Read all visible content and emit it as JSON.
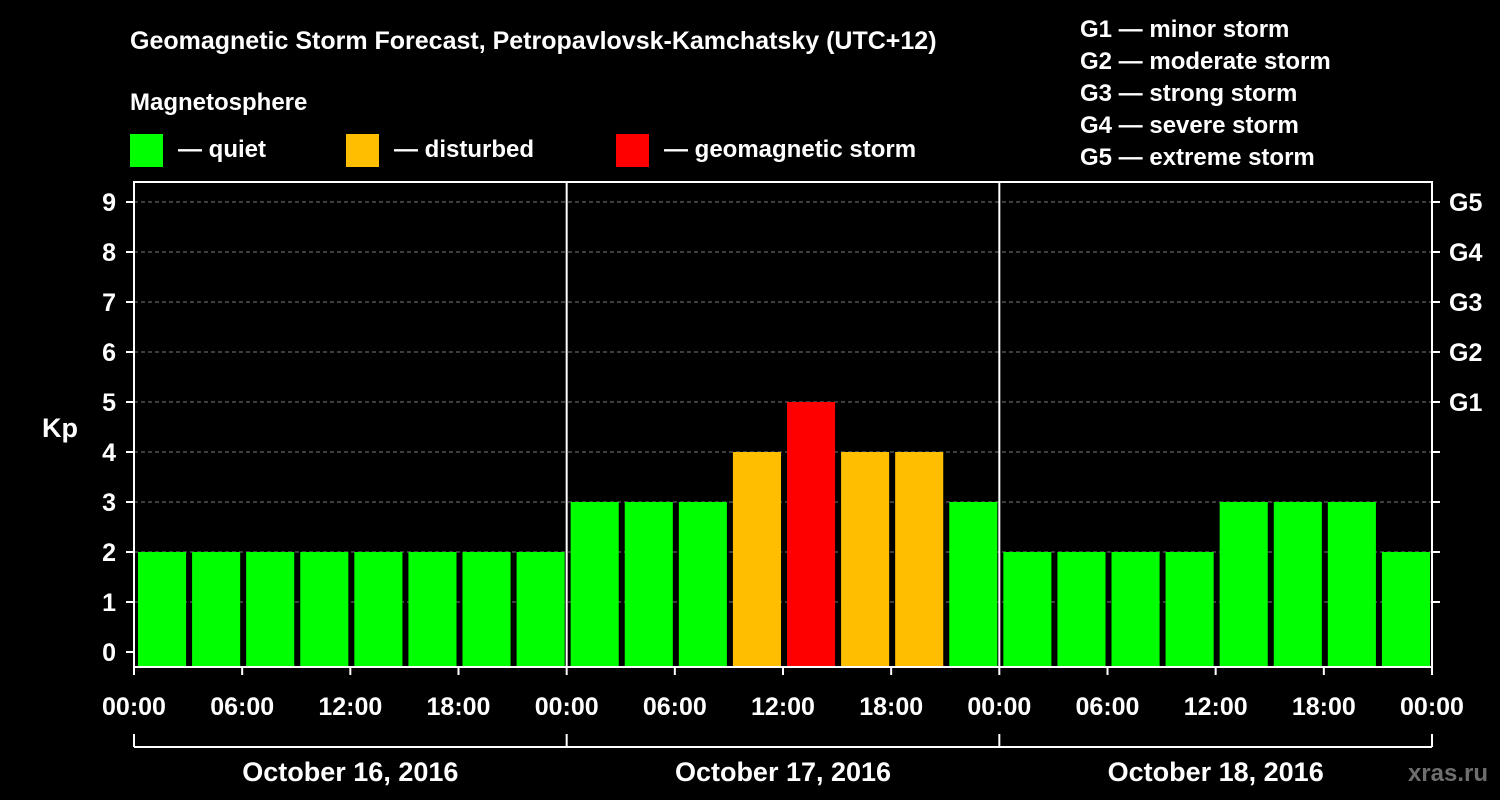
{
  "chart_data": {
    "type": "bar",
    "title": "Geomagnetic Storm Forecast, Petropavlovsk-Kamchatsky (UTC+12)",
    "ylabel": "Kp",
    "ylim": [
      0,
      9
    ],
    "y_ticks": [
      "0",
      "1",
      "2",
      "3",
      "4",
      "5",
      "6",
      "7",
      "8",
      "9"
    ],
    "right_ticks": [
      {
        "kp": 5,
        "label": "G1"
      },
      {
        "kp": 6,
        "label": "G2"
      },
      {
        "kp": 7,
        "label": "G3"
      },
      {
        "kp": 8,
        "label": "G4"
      },
      {
        "kp": 9,
        "label": "G5"
      }
    ],
    "x_tick_labels": [
      "00:00",
      "06:00",
      "12:00",
      "18:00",
      "00:00",
      "06:00",
      "12:00",
      "18:00",
      "00:00",
      "06:00",
      "12:00",
      "18:00",
      "00:00"
    ],
    "days": [
      "October 16, 2016",
      "October 17, 2016",
      "October 18, 2016"
    ],
    "values": [
      2,
      2,
      2,
      2,
      2,
      2,
      2,
      2,
      3,
      3,
      3,
      4,
      5,
      4,
      4,
      3,
      2,
      2,
      2,
      2,
      3,
      3,
      3,
      2
    ],
    "grid": "horizontal dashed",
    "legend": {
      "title": "Magnetosphere",
      "items": [
        {
          "label": "— quiet",
          "color": "#00ff00"
        },
        {
          "label": "— disturbed",
          "color": "#ffbf00"
        },
        {
          "label": "— geomagnetic storm",
          "color": "#ff0000"
        }
      ]
    },
    "storm_scale": [
      "G1 — minor storm",
      "G2 — moderate storm",
      "G3 — strong storm",
      "G4 — severe storm",
      "G5 — extreme storm"
    ],
    "colors": {
      "quiet": "#00ff00",
      "disturbed": "#ffbf00",
      "storm": "#ff0000"
    },
    "watermark": "xras.ru"
  }
}
